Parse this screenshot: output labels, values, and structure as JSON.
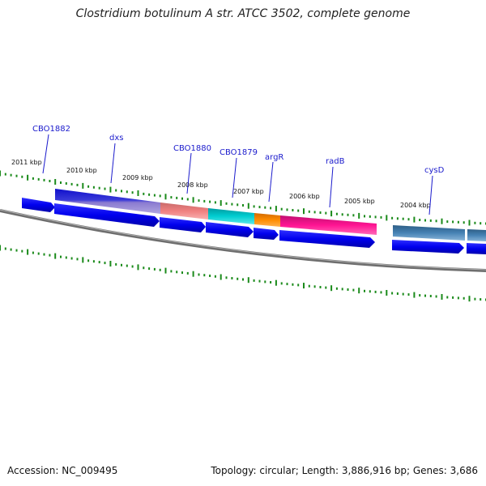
{
  "title": "Clostridium botulinum A str. ATCC 3502, complete genome",
  "footer": {
    "accession": "Accession: NC_009495",
    "summary": "Topology: circular; Length: 3,886,916 bp; Genes: 3,686"
  },
  "colors": {
    "cds_arrow": "#0000ee",
    "backbone": "#777777",
    "tick": "#1a8a1a",
    "label": "#1a1acc"
  },
  "scale": {
    "unit": "kbp",
    "labels": [
      "2011 kbp",
      "2010 kbp",
      "2009 kbp",
      "2008 kbp",
      "2007 kbp",
      "2006 kbp",
      "2005 kbp",
      "2004 kbp"
    ]
  },
  "genes": [
    {
      "name": "CBO1882",
      "color": "#0000ee",
      "labeled": true
    },
    {
      "name": "dxs",
      "color": "#6a5acd",
      "labeled": true
    },
    {
      "name": "CBO1880",
      "color": "#f08080",
      "labeled": true
    },
    {
      "name": "CBO1879",
      "color": "#00ced1",
      "labeled": true
    },
    {
      "name": "argR",
      "color": "#ff8c00",
      "labeled": true
    },
    {
      "name": "radB",
      "color": "#ff1493",
      "labeled": true
    },
    {
      "name": "cysD",
      "color": "#4682b4",
      "labeled": true
    }
  ]
}
